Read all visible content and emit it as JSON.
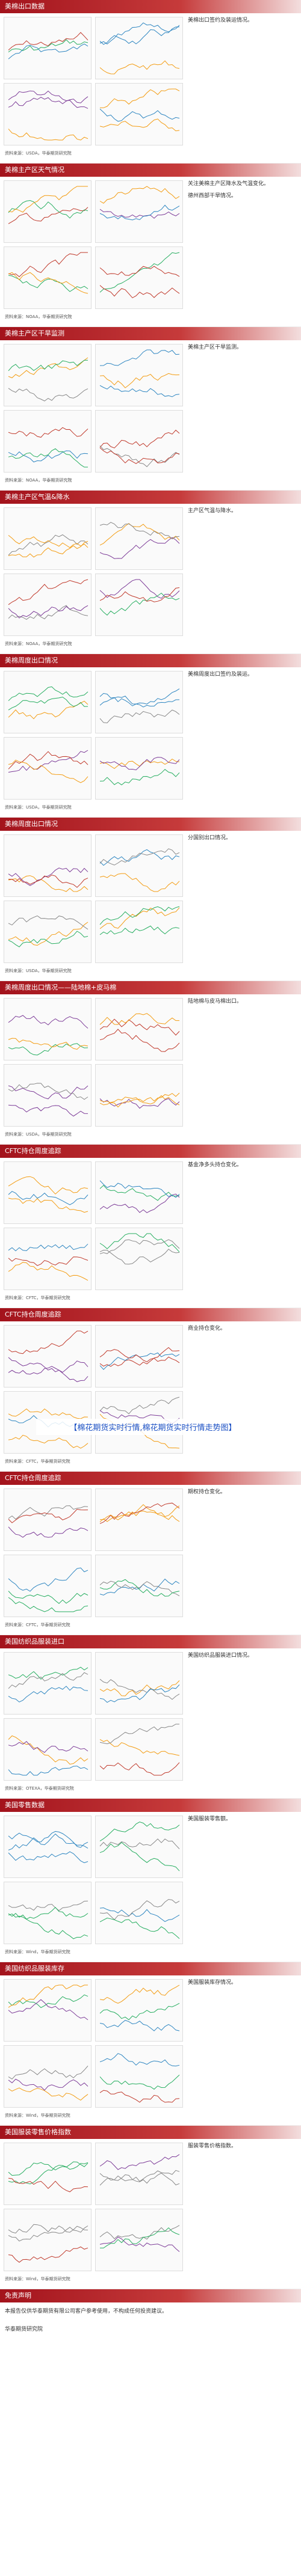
{
  "banner": "【棉花期货实时行情,棉花期货实时行情走势图】",
  "sections": [
    {
      "title": "美棉出口数据",
      "notes": [
        "美棉出口签约及装运情况。"
      ],
      "source": "资料来源：USDA，华泰期货研究院"
    },
    {
      "title": "美棉主产区天气情况",
      "notes": [
        "关注美棉主产区降水及气温变化。",
        "德州西部干旱情况。"
      ],
      "source": "资料来源：NOAA，华泰期货研究院"
    },
    {
      "title": "美棉主产区干旱监测",
      "notes": [
        "美棉主产区干旱监测。"
      ],
      "source": "资料来源：NOAA，华泰期货研究院"
    },
    {
      "title": "美棉主产区气温&降水",
      "notes": [
        "主产区气温与降水。"
      ],
      "source": "资料来源：NOAA，华泰期货研究院"
    },
    {
      "title": "美棉周度出口情况",
      "notes": [
        "美棉周度出口签约及装运。"
      ],
      "source": "资料来源：USDA，华泰期货研究院"
    },
    {
      "title": "美棉周度出口情况",
      "notes": [
        "分国别出口情况。"
      ],
      "source": "资料来源：USDA，华泰期货研究院"
    },
    {
      "title": "美棉周度出口情况——陆地棉+皮马棉",
      "notes": [
        "陆地棉与皮马棉出口。"
      ],
      "source": "资料来源：USDA，华泰期货研究院"
    },
    {
      "title": "CFTC持仓周度追踪",
      "notes": [
        "基金净多头持仓变化。"
      ],
      "source": "资料来源：CFTC，华泰期货研究院"
    },
    {
      "title": "CFTC持仓周度追踪",
      "notes": [
        "商业持仓变化。"
      ],
      "source": "资料来源：CFTC，华泰期货研究院"
    },
    {
      "title": "CFTC持仓周度追踪",
      "notes": [
        "期权持仓变化。"
      ],
      "source": "资料来源：CFTC，华泰期货研究院"
    },
    {
      "title": "美国纺织品服装进口",
      "notes": [
        "美国纺织品服装进口情况。"
      ],
      "source": "资料来源：OTEXA，华泰期货研究院"
    },
    {
      "title": "美国零售数据",
      "notes": [
        "美国服装零售额。"
      ],
      "source": "资料来源：Wind，华泰期货研究院"
    },
    {
      "title": "美国纺织品服装库存",
      "notes": [
        "美国服装库存情况。"
      ],
      "source": "资料来源：Wind，华泰期货研究院"
    },
    {
      "title": "美国服装零售价格指数",
      "notes": [
        "服装零售价格指数。"
      ],
      "source": "资料来源：Wind，华泰期货研究院"
    }
  ],
  "disclaimer": {
    "title": "免责声明",
    "text": "本报告仅供华泰期货有限公司客户参考使用，不构成任何投资建议。",
    "contact": "华泰期货研究院"
  }
}
